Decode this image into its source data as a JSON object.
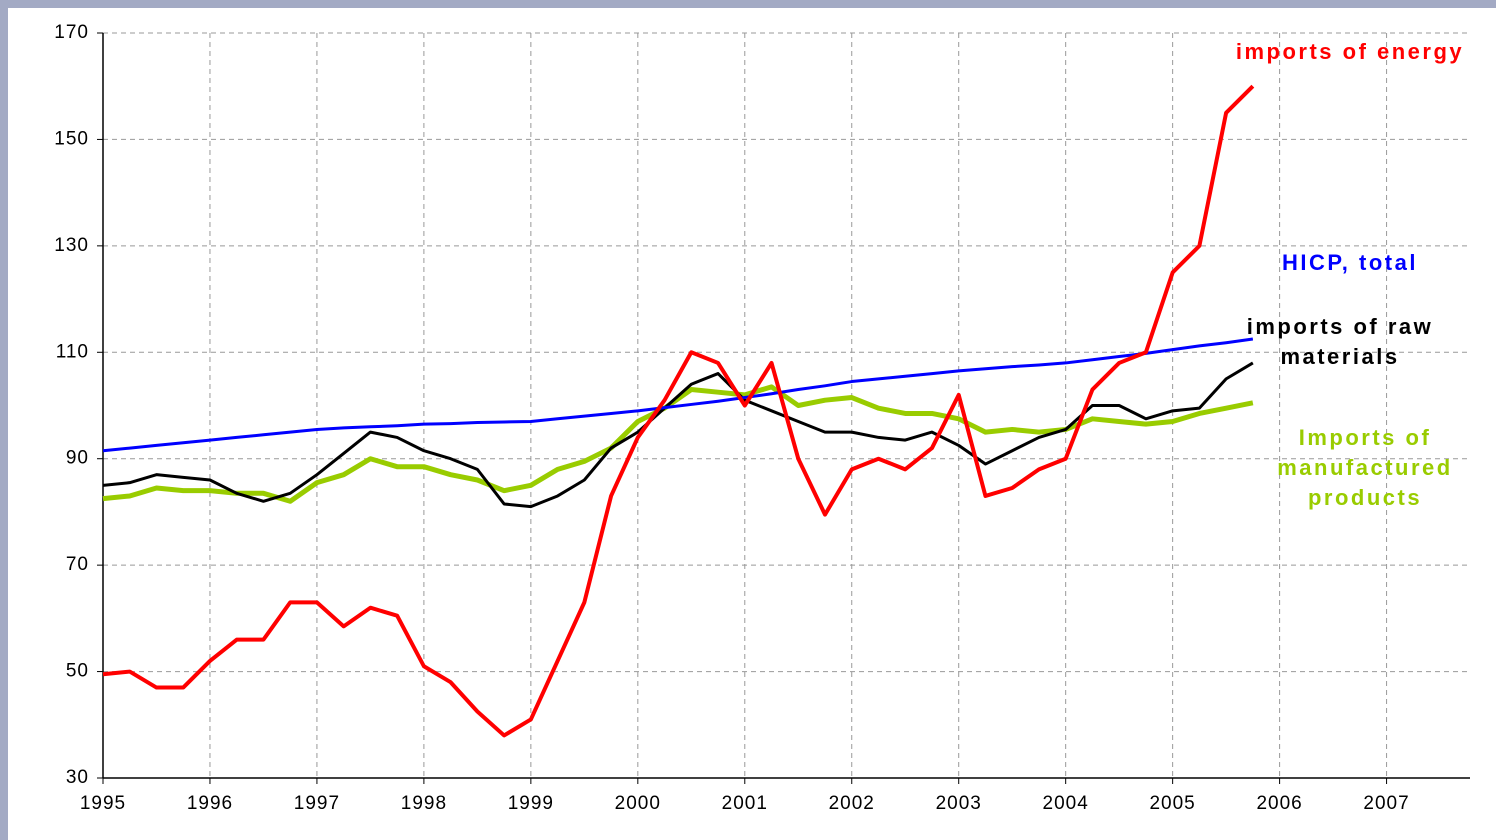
{
  "chart_data": {
    "type": "line",
    "x": [
      1995,
      1995.25,
      1995.5,
      1995.75,
      1996,
      1996.25,
      1996.5,
      1996.75,
      1997,
      1997.25,
      1997.5,
      1997.75,
      1998,
      1998.25,
      1998.5,
      1998.75,
      1999,
      1999.25,
      1999.5,
      1999.75,
      2000,
      2000.25,
      2000.5,
      2000.75,
      2001,
      2001.25,
      2001.5,
      2001.75,
      2002,
      2002.25,
      2002.5,
      2002.75,
      2003,
      2003.25,
      2003.5,
      2003.75,
      2004,
      2004.25,
      2004.5,
      2004.75,
      2005,
      2005.25,
      2005.5,
      2005.75
    ],
    "series": [
      {
        "name": "imports of energy",
        "color": "#ff0000",
        "values": [
          49.5,
          50,
          47,
          47,
          52,
          56,
          56,
          63,
          63,
          58.5,
          62,
          60.5,
          51,
          48,
          42.5,
          38,
          41,
          52,
          63,
          83,
          94,
          101,
          110,
          108,
          100,
          108,
          90,
          79.5,
          88,
          90,
          88,
          92,
          102,
          83,
          84.5,
          88,
          90,
          103,
          108,
          110,
          125,
          130,
          155,
          160
        ]
      },
      {
        "name": "HICP, total",
        "color": "#0000ff",
        "values": [
          91.5,
          92,
          92.5,
          93,
          93.5,
          94,
          94.5,
          95,
          95.5,
          95.8,
          96,
          96.2,
          96.5,
          96.6,
          96.8,
          96.9,
          97,
          97.5,
          98,
          98.5,
          99,
          99.6,
          100.2,
          100.8,
          101.5,
          102.2,
          103,
          103.7,
          104.5,
          105,
          105.5,
          106,
          106.5,
          106.9,
          107.3,
          107.6,
          108,
          108.6,
          109.2,
          109.8,
          110.5,
          111.2,
          111.8,
          112.5
        ]
      },
      {
        "name": "imports of raw materials",
        "color": "#000000",
        "values": [
          85,
          85.5,
          87,
          86.5,
          86,
          83.5,
          82,
          83.5,
          87,
          91,
          95,
          94,
          91.5,
          90,
          88,
          81.5,
          81,
          83,
          86,
          92,
          95,
          99.5,
          104,
          106,
          101,
          99,
          97,
          95,
          95,
          94,
          93.5,
          95,
          92.5,
          89,
          91.5,
          94,
          95.5,
          100,
          100,
          97.5,
          99,
          99.5,
          105,
          108
        ]
      },
      {
        "name": "Imports of manufactured products",
        "color": "#99cc00",
        "values": [
          82.5,
          83,
          84.5,
          84,
          84,
          83.5,
          83.5,
          82,
          85.5,
          87,
          90,
          88.5,
          88.5,
          87,
          86,
          84,
          85,
          88,
          89.5,
          92,
          97,
          99.5,
          103,
          102.5,
          102,
          103.5,
          100,
          101,
          101.5,
          99.5,
          98.5,
          98.5,
          97.5,
          95,
          95.5,
          95,
          95.5,
          97.5,
          97,
          96.5,
          97,
          98.5,
          99.5,
          100.5
        ]
      }
    ],
    "xlim": [
      1995,
      2007.78
    ],
    "xticks": [
      1995,
      1996,
      1997,
      1998,
      1999,
      2000,
      2001,
      2002,
      2003,
      2004,
      2005,
      2006,
      2007
    ],
    "ylim": [
      30,
      170
    ],
    "yticks": [
      30,
      50,
      70,
      90,
      110,
      130,
      150,
      170
    ],
    "grid": true
  }
}
